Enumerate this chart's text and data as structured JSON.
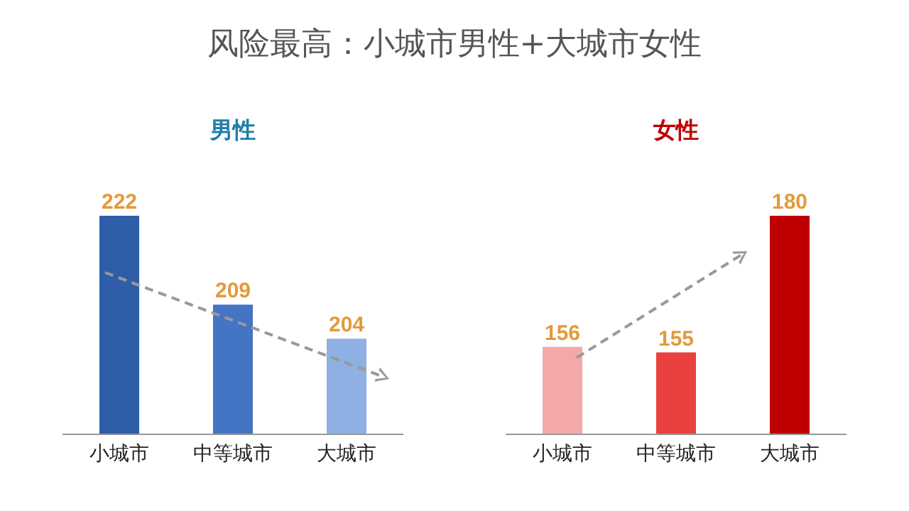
{
  "chart_data": [
    {
      "type": "bar",
      "title": "风险最高：小城市男性+大城市女性",
      "subtitle": "男性",
      "categories": [
        "小城市",
        "中等城市",
        "大城市"
      ],
      "series": [
        {
          "colors": [
            "#2f5ea8",
            "#4474c4",
            "#8eb0e2"
          ],
          "values": [
            222,
            209,
            204
          ]
        }
      ],
      "ylim": [
        190,
        222
      ],
      "tick_labels": "x",
      "data_labels": true
    },
    {
      "type": "bar",
      "subtitle": "女性",
      "categories": [
        "小城市",
        "中等城市",
        "大城市"
      ],
      "series": [
        {
          "colors": [
            "#f4a8a8",
            "#e8413f",
            "#c00000"
          ],
          "values": [
            156,
            155,
            180
          ]
        }
      ],
      "ylim": [
        140,
        180
      ],
      "tick_labels": "x",
      "data_labels": true
    }
  ]
}
